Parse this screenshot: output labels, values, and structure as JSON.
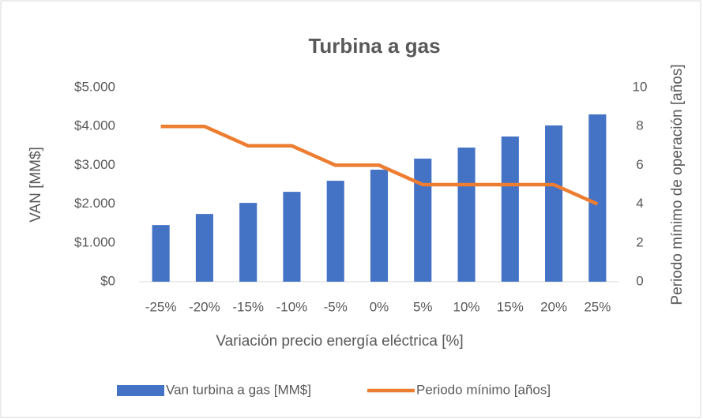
{
  "chart_data": {
    "type": "bar",
    "title": "Turbina a gas",
    "x_label": "Variación precio energía eléctrica [%]",
    "y_label": "VAN [MM$]",
    "y2_label": "Periodo mínimo de operación [años]",
    "categories": [
      "-25%",
      "-20%",
      "-15%",
      "-10%",
      "-5%",
      "0%",
      "5%",
      "10%",
      "15%",
      "20%",
      "25%"
    ],
    "series": [
      {
        "name": "Van turbina a gas [MM$]",
        "type": "bar",
        "color": "#4472c4",
        "values": [
          1460,
          1745,
          2030,
          2315,
          2600,
          2885,
          3170,
          3455,
          3740,
          4025,
          4310
        ]
      },
      {
        "name": "Periodo mínimo [años]",
        "type": "line",
        "axis": "y2",
        "color": "#ed7d31",
        "values": [
          8,
          8,
          7,
          7,
          6,
          6,
          5,
          5,
          5,
          5,
          4
        ]
      }
    ],
    "ylim": [
      0,
      5000
    ],
    "yticks": [
      {
        "value": 0,
        "label": "$0"
      },
      {
        "value": 1000,
        "label": "$1.000"
      },
      {
        "value": 2000,
        "label": "$2.000"
      },
      {
        "value": 3000,
        "label": "$3.000"
      },
      {
        "value": 4000,
        "label": "$4.000"
      },
      {
        "value": 5000,
        "label": "$5.000"
      }
    ],
    "y2lim": [
      0,
      10
    ],
    "y2ticks": [
      0,
      2,
      4,
      6,
      8,
      10
    ],
    "grid": false,
    "legend": "bottom"
  }
}
